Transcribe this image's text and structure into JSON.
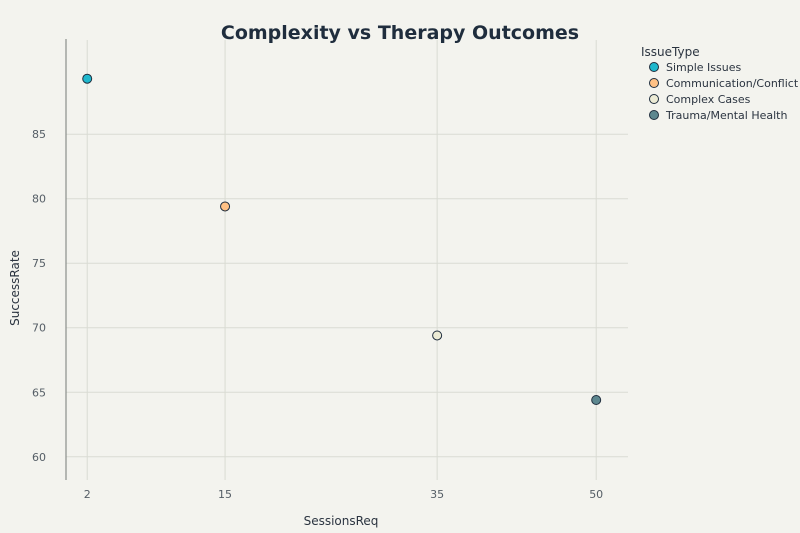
{
  "chart_data": {
    "type": "scatter",
    "title": "Complexity vs Therapy Outcomes",
    "xlabel": "SessionsReq",
    "ylabel": "SuccessRate",
    "x_ticks": [
      2,
      15,
      35,
      50
    ],
    "y_ticks": [
      60,
      65,
      70,
      75,
      80,
      85
    ],
    "xlim": [
      0,
      53
    ],
    "ylim": [
      58.2,
      92.3
    ],
    "grid": true,
    "legend": {
      "title": "IssueType",
      "position": "top-right"
    },
    "series": [
      {
        "name": "Simple Issues",
        "color": "#1fb8cd",
        "x": [
          2
        ],
        "y": [
          89.3
        ]
      },
      {
        "name": "Communication/Conflict",
        "color": "#ffc185",
        "x": [
          15
        ],
        "y": [
          79.4
        ]
      },
      {
        "name": "Complex Cases",
        "color": "#ecebd5",
        "x": [
          35
        ],
        "y": [
          69.4
        ]
      },
      {
        "name": "Trauma/Mental Health",
        "color": "#5d878f",
        "x": [
          50
        ],
        "y": [
          64.4
        ]
      }
    ]
  }
}
